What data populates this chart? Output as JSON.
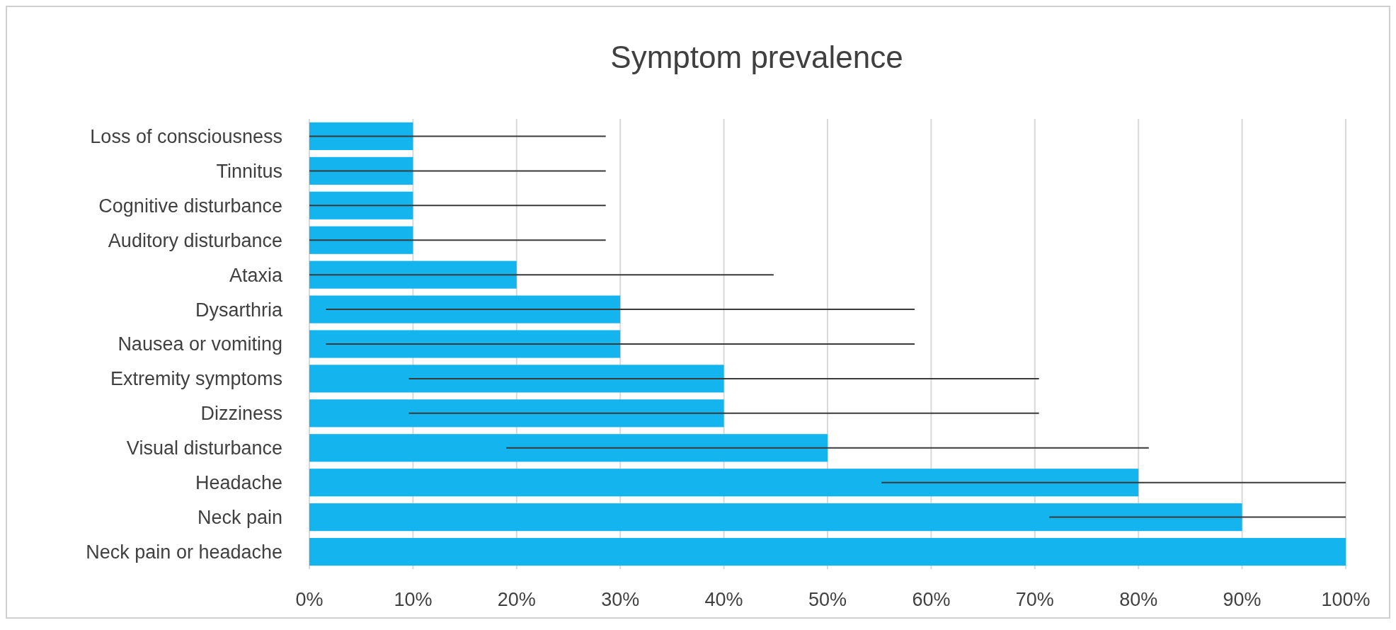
{
  "chart_data": {
    "type": "bar",
    "orientation": "horizontal",
    "title": "Symptom prevalence",
    "categories": [
      "Loss of consciousness",
      "Tinnitus",
      "Cognitive disturbance",
      "Auditory disturbance",
      "Ataxia",
      "Dysarthria",
      "Nausea or vomiting",
      "Extremity symptoms",
      "Dizziness",
      "Visual disturbance",
      "Headache",
      "Neck pain",
      "Neck pain or headache"
    ],
    "values": [
      10,
      10,
      10,
      10,
      20,
      30,
      30,
      40,
      40,
      50,
      80,
      90,
      100
    ],
    "errors": [
      [
        0,
        28.6
      ],
      [
        0,
        28.6
      ],
      [
        0,
        28.6
      ],
      [
        0,
        28.6
      ],
      [
        0,
        44.8
      ],
      [
        1.6,
        58.4
      ],
      [
        1.6,
        58.4
      ],
      [
        9.6,
        70.4
      ],
      [
        9.6,
        70.4
      ],
      [
        19,
        81
      ],
      [
        55.2,
        100
      ],
      [
        71.4,
        100
      ],
      null
    ],
    "color": "#14b4ef",
    "xlim": [
      0,
      100
    ],
    "xticks": [
      {
        "value": 0,
        "label": "0%"
      },
      {
        "value": 10,
        "label": "10%"
      },
      {
        "value": 20,
        "label": "20%"
      },
      {
        "value": 30,
        "label": "30%"
      },
      {
        "value": 40,
        "label": "40%"
      },
      {
        "value": 50,
        "label": "50%"
      },
      {
        "value": 60,
        "label": "60%"
      },
      {
        "value": 70,
        "label": "70%"
      },
      {
        "value": 80,
        "label": "80%"
      },
      {
        "value": 90,
        "label": "90%"
      },
      {
        "value": 100,
        "label": "100%"
      }
    ],
    "grid": "x"
  }
}
